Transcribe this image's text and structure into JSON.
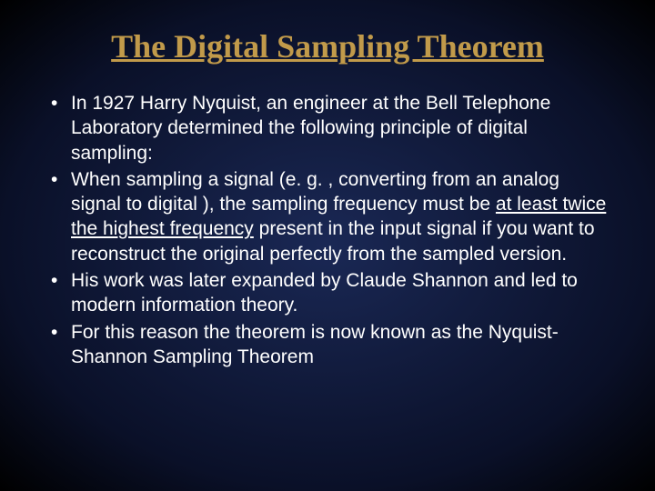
{
  "slide": {
    "background": {
      "gradient_center": "#1a2855",
      "gradient_mid": "#0a1028",
      "gradient_edge": "#000000"
    },
    "title": {
      "text": "The Digital Sampling Theorem",
      "color": "#c19a4a",
      "font_family": "Times New Roman",
      "font_size_pt": 36,
      "underline": true,
      "bold": true
    },
    "body": {
      "text_color": "#ffffff",
      "font_family": "Arial",
      "font_size_pt": 21,
      "bullets": [
        {
          "segments": [
            {
              "text": "In 1927 Harry Nyquist, an engineer at the Bell Telephone Laboratory determined the following principle of digital sampling:",
              "underline": false
            }
          ]
        },
        {
          "segments": [
            {
              "text": "When sampling a signal (e. g. , converting from an analog signal to digital ), the sampling frequency must be ",
              "underline": false
            },
            {
              "text": "at least twice",
              "underline": true
            },
            {
              "text": " ",
              "underline": false
            },
            {
              "text": "the highest frequency",
              "underline": true
            },
            {
              "text": " present in the input signal if you want to reconstruct the original perfectly from the sampled version.",
              "underline": false
            }
          ]
        },
        {
          "segments": [
            {
              "text": "His work was later expanded by Claude Shannon and led to modern information theory.",
              "underline": false
            }
          ]
        },
        {
          "segments": [
            {
              "text": "For this reason the theorem is now known as the Nyquist-Shannon Sampling Theorem",
              "underline": false
            }
          ]
        }
      ]
    }
  }
}
